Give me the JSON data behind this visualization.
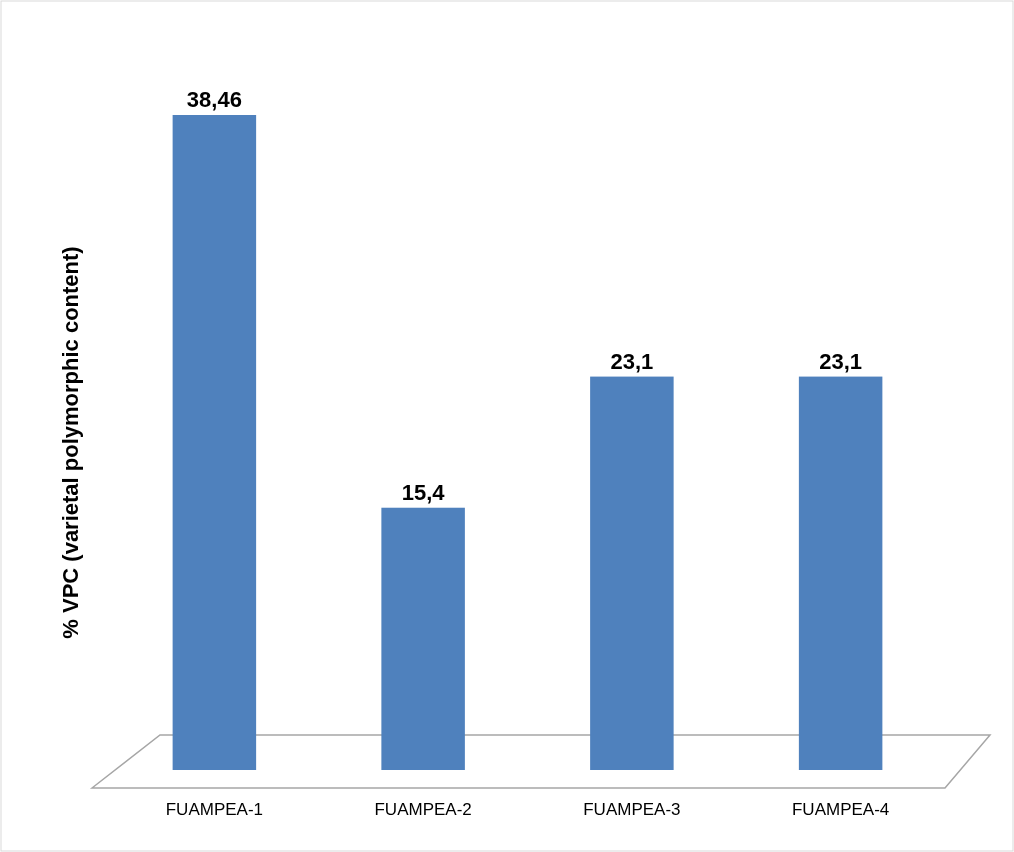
{
  "chart_data": {
    "type": "bar",
    "ylabel": "% VPC (varietal polymorphic content)",
    "categories": [
      "FUAMPEA-1",
      "FUAMPEA-2",
      "FUAMPEA-3",
      "FUAMPEA-4"
    ],
    "values": [
      38.46,
      15.4,
      23.1,
      23.1
    ],
    "value_labels": [
      "38,46",
      "15,4",
      "23,1",
      "23,1"
    ],
    "color": "#4f81bd"
  }
}
